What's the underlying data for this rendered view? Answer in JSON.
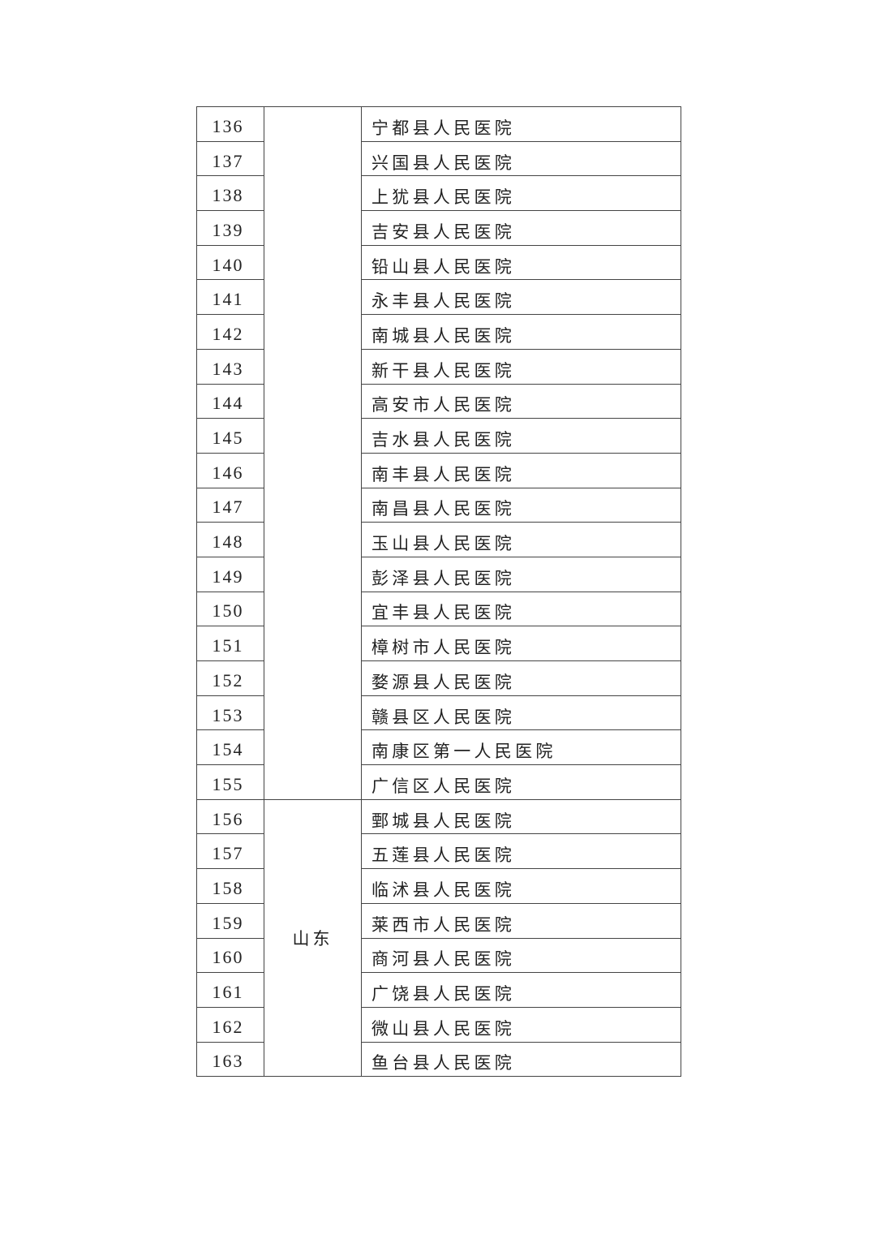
{
  "groups": [
    {
      "province": "",
      "rows": [
        {
          "no": "136",
          "name": "宁都县人民医院"
        },
        {
          "no": "137",
          "name": "兴国县人民医院"
        },
        {
          "no": "138",
          "name": "上犹县人民医院"
        },
        {
          "no": "139",
          "name": "吉安县人民医院"
        },
        {
          "no": "140",
          "name": "铅山县人民医院"
        },
        {
          "no": "141",
          "name": "永丰县人民医院"
        },
        {
          "no": "142",
          "name": "南城县人民医院"
        },
        {
          "no": "143",
          "name": "新干县人民医院"
        },
        {
          "no": "144",
          "name": "高安市人民医院"
        },
        {
          "no": "145",
          "name": "吉水县人民医院"
        },
        {
          "no": "146",
          "name": "南丰县人民医院"
        },
        {
          "no": "147",
          "name": "南昌县人民医院"
        },
        {
          "no": "148",
          "name": "玉山县人民医院"
        },
        {
          "no": "149",
          "name": "彭泽县人民医院"
        },
        {
          "no": "150",
          "name": "宜丰县人民医院"
        },
        {
          "no": "151",
          "name": "樟树市人民医院"
        },
        {
          "no": "152",
          "name": "婺源县人民医院"
        },
        {
          "no": "153",
          "name": "赣县区人民医院"
        },
        {
          "no": "154",
          "name": "南康区第一人民医院"
        },
        {
          "no": "155",
          "name": "广信区人民医院"
        }
      ]
    },
    {
      "province": "山东",
      "rows": [
        {
          "no": "156",
          "name": "鄄城县人民医院"
        },
        {
          "no": "157",
          "name": "五莲县人民医院"
        },
        {
          "no": "158",
          "name": "临沭县人民医院"
        },
        {
          "no": "159",
          "name": "莱西市人民医院"
        },
        {
          "no": "160",
          "name": "商河县人民医院"
        },
        {
          "no": "161",
          "name": "广饶县人民医院"
        },
        {
          "no": "162",
          "name": "微山县人民医院"
        },
        {
          "no": "163",
          "name": "鱼台县人民医院"
        }
      ]
    }
  ]
}
